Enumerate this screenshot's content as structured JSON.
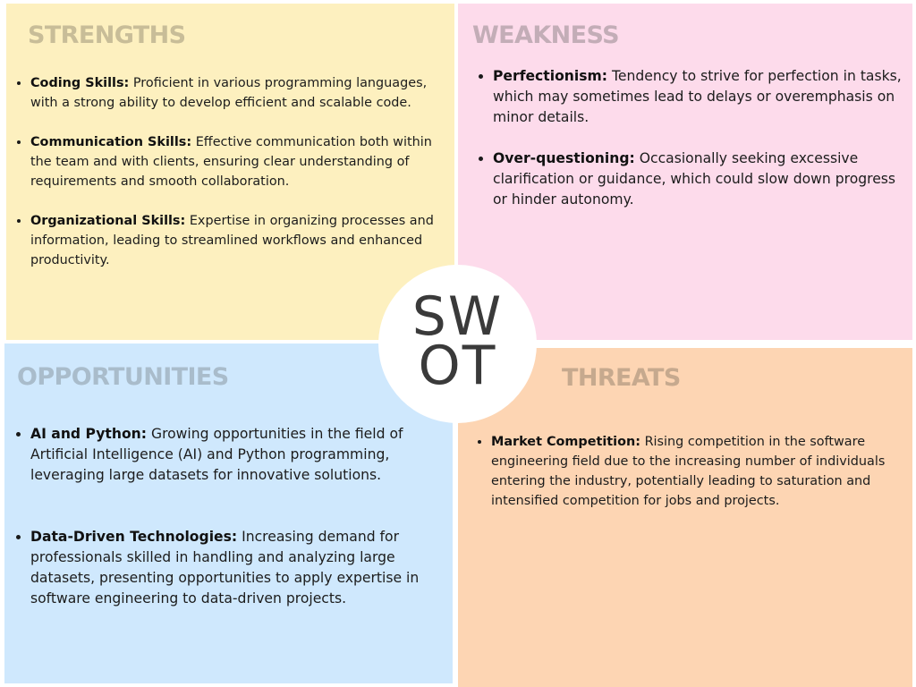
{
  "strengths": {
    "heading": "STRENGTHS",
    "items": [
      {
        "term": "Coding Skills:",
        "desc": "Proficient in various programming languages, with a strong ability to develop efficient and scalable code."
      },
      {
        "term": "Communication Skills:",
        "desc": "Effective communication both within the team and with clients, ensuring clear understanding of requirements and smooth collaboration."
      },
      {
        "term": "Organizational Skills:",
        "desc": "Expertise in organizing processes and information, leading to streamlined workflows and enhanced productivity."
      }
    ]
  },
  "weakness": {
    "heading": "WEAKNESS",
    "items": [
      {
        "term": "Perfectionism:",
        "desc": "Tendency to strive for perfection in tasks, which may sometimes lead to delays or overemphasis on minor details."
      },
      {
        "term": "Over-questioning:",
        "desc": "Occasionally seeking excessive clarification or guidance, which could slow down progress or hinder autonomy."
      }
    ]
  },
  "opportunities": {
    "heading": "OPPORTUNITIES",
    "items": [
      {
        "term": "AI and Python:",
        "desc": "Growing opportunities in the field of Artificial Intelligence (AI) and Python programming, leveraging large datasets for innovative solutions."
      },
      {
        "term": "Data-Driven Technologies:",
        "desc": "Increasing demand for professionals skilled in handling and analyzing large datasets, presenting opportunities to apply expertise in software engineering to data-driven projects."
      }
    ]
  },
  "threats": {
    "heading": "THREATS",
    "items": [
      {
        "term": "Market Competition:",
        "desc": "Rising competition in the software engineering field due to the increasing number of individuals entering the industry, potentially leading to saturation and intensified competition for jobs and projects."
      }
    ]
  },
  "center": {
    "line1": "SW",
    "line2": "OT"
  },
  "colors": {
    "strengths_bg": "#fdf0bf",
    "weakness_bg": "#fddbeb",
    "opportunities_bg": "#cfe8fd",
    "threats_bg": "#fdd5b3",
    "center_bg": "#ffffff",
    "center_text": "#3a3a3a"
  }
}
